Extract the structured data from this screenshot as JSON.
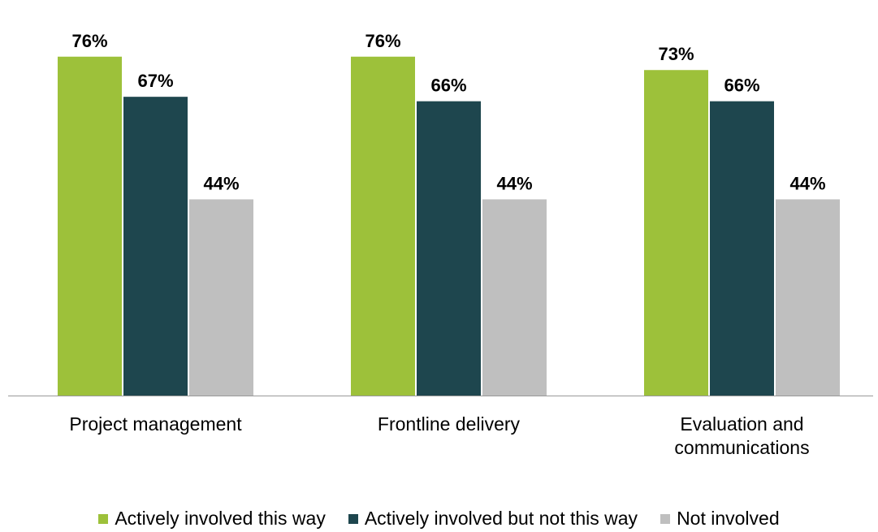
{
  "chart_data": {
    "type": "bar",
    "categories": [
      "Project management",
      "Frontline delivery",
      "Evaluation and communications"
    ],
    "category_lines": [
      [
        "Project management"
      ],
      [
        "Frontline delivery"
      ],
      [
        "Evaluation and",
        "communications"
      ]
    ],
    "series": [
      {
        "name": "Actively involved this way",
        "values": [
          76,
          76,
          73
        ],
        "color": "#9dc13a"
      },
      {
        "name": "Actively involved but not this way",
        "values": [
          67,
          66,
          66
        ],
        "color": "#1e464e"
      },
      {
        "name": "Not involved",
        "values": [
          44,
          44,
          44
        ],
        "color": "#bfbfbf"
      }
    ],
    "value_suffix": "%",
    "ylim": [
      0,
      80
    ],
    "grid": false,
    "legend_position": "bottom",
    "axis_color": "#999999"
  }
}
